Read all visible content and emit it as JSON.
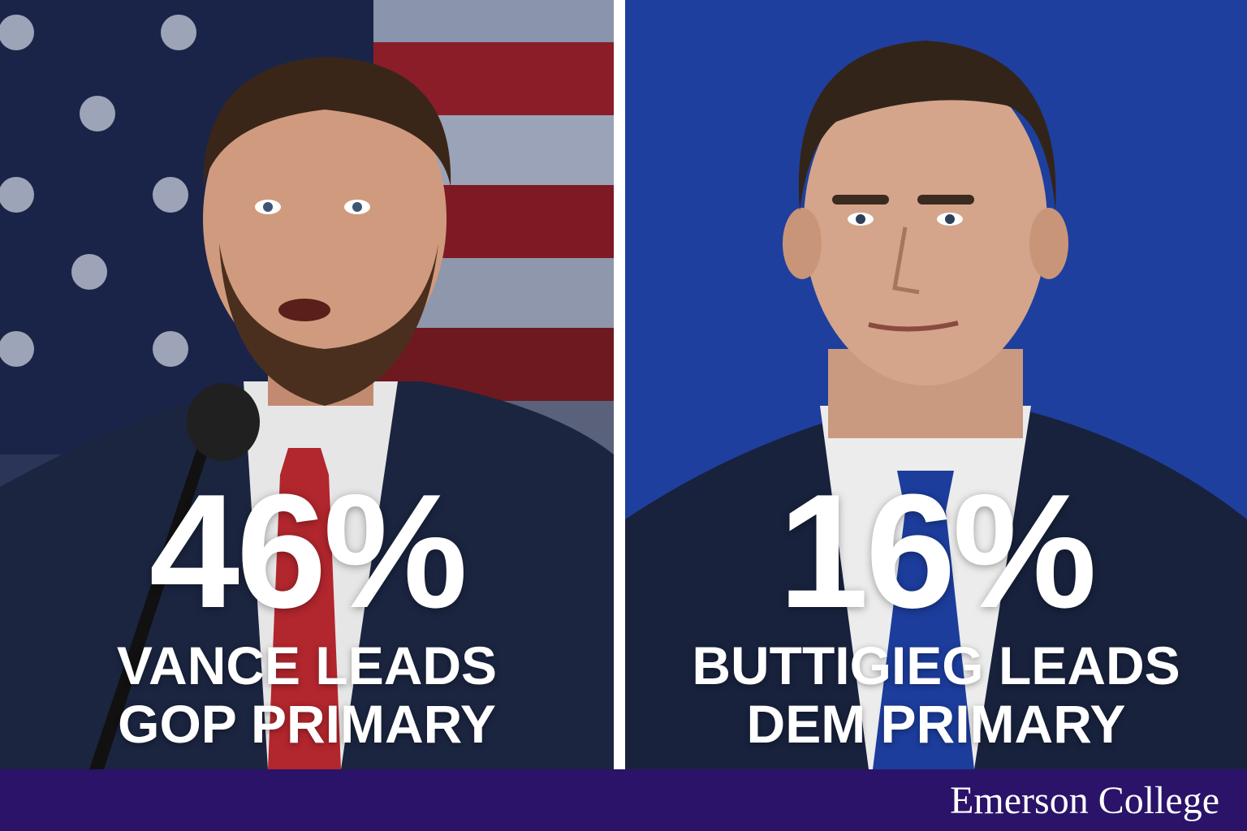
{
  "left_panel": {
    "percent": "46%",
    "headline_line1": "VANCE LEADS",
    "headline_line2": "GOP PRIMARY",
    "background": "american-flag",
    "tie_color": "#b2262d"
  },
  "right_panel": {
    "percent": "16%",
    "headline_line1": "BUTTIGIEG LEADS",
    "headline_line2": "DEM PRIMARY",
    "background_color": "#1f3f9e",
    "tie_color": "#1c3d9c"
  },
  "footer": {
    "brand": "Emerson College",
    "color": "#2a1369"
  }
}
